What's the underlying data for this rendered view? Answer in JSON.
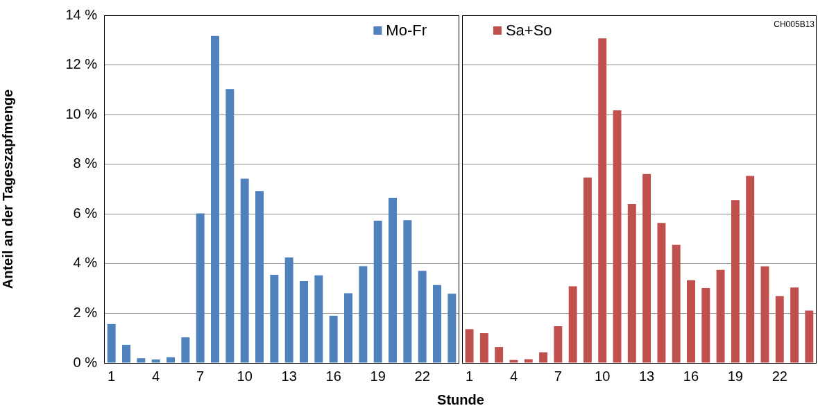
{
  "chart_data": [
    {
      "type": "bar",
      "categories": [
        "1",
        null,
        null,
        "4",
        null,
        null,
        "7",
        null,
        null,
        "10",
        null,
        null,
        "13",
        null,
        null,
        "16",
        null,
        null,
        "19",
        null,
        null,
        "22",
        null,
        null
      ],
      "series": [
        {
          "name": "Mo-Fr",
          "color": "#4f81bd",
          "values": [
            1.57,
            0.73,
            0.19,
            0.14,
            0.23,
            1.03,
            6.02,
            13.17,
            11.03,
            7.42,
            6.92,
            3.55,
            4.25,
            3.3,
            3.53,
            1.9,
            2.81,
            3.9,
            5.73,
            6.65,
            5.75,
            3.71,
            3.14,
            2.79
          ]
        }
      ],
      "ylim": [
        0,
        14
      ],
      "yticks": [
        {
          "value": 0,
          "label": "0 %"
        },
        {
          "value": 2,
          "label": "2 %"
        },
        {
          "value": 4,
          "label": "4 %"
        },
        {
          "value": 6,
          "label": "6 %"
        },
        {
          "value": 8,
          "label": "8 %"
        },
        {
          "value": 10,
          "label": "10 %"
        },
        {
          "value": 12,
          "label": "12 %"
        },
        {
          "value": 14,
          "label": "14 %"
        }
      ],
      "ylabel": "Anteil an der Tageszapfmenge",
      "xlabel": "Stunde",
      "grid": "y",
      "legend": "top right"
    },
    {
      "type": "bar",
      "categories": [
        "1",
        null,
        null,
        "4",
        null,
        null,
        "7",
        null,
        null,
        "10",
        null,
        null,
        "13",
        null,
        null,
        "16",
        null,
        null,
        "19",
        null,
        null,
        "22",
        null,
        null
      ],
      "series": [
        {
          "name": "Sa+So",
          "color": "#c0504d",
          "values": [
            1.36,
            1.2,
            0.64,
            0.12,
            0.15,
            0.43,
            1.48,
            3.09,
            7.47,
            13.07,
            10.17,
            6.4,
            7.61,
            5.64,
            4.76,
            3.33,
            3.02,
            3.75,
            6.56,
            7.53,
            3.89,
            2.69,
            3.04,
            2.11
          ]
        }
      ],
      "ylim": [
        0,
        14
      ],
      "yticks": [
        0,
        2,
        4,
        6,
        8,
        10,
        12,
        14
      ],
      "tick_labels": "x",
      "grid": "y",
      "legend": "top left",
      "annotations": [
        "CH005B13"
      ]
    }
  ]
}
